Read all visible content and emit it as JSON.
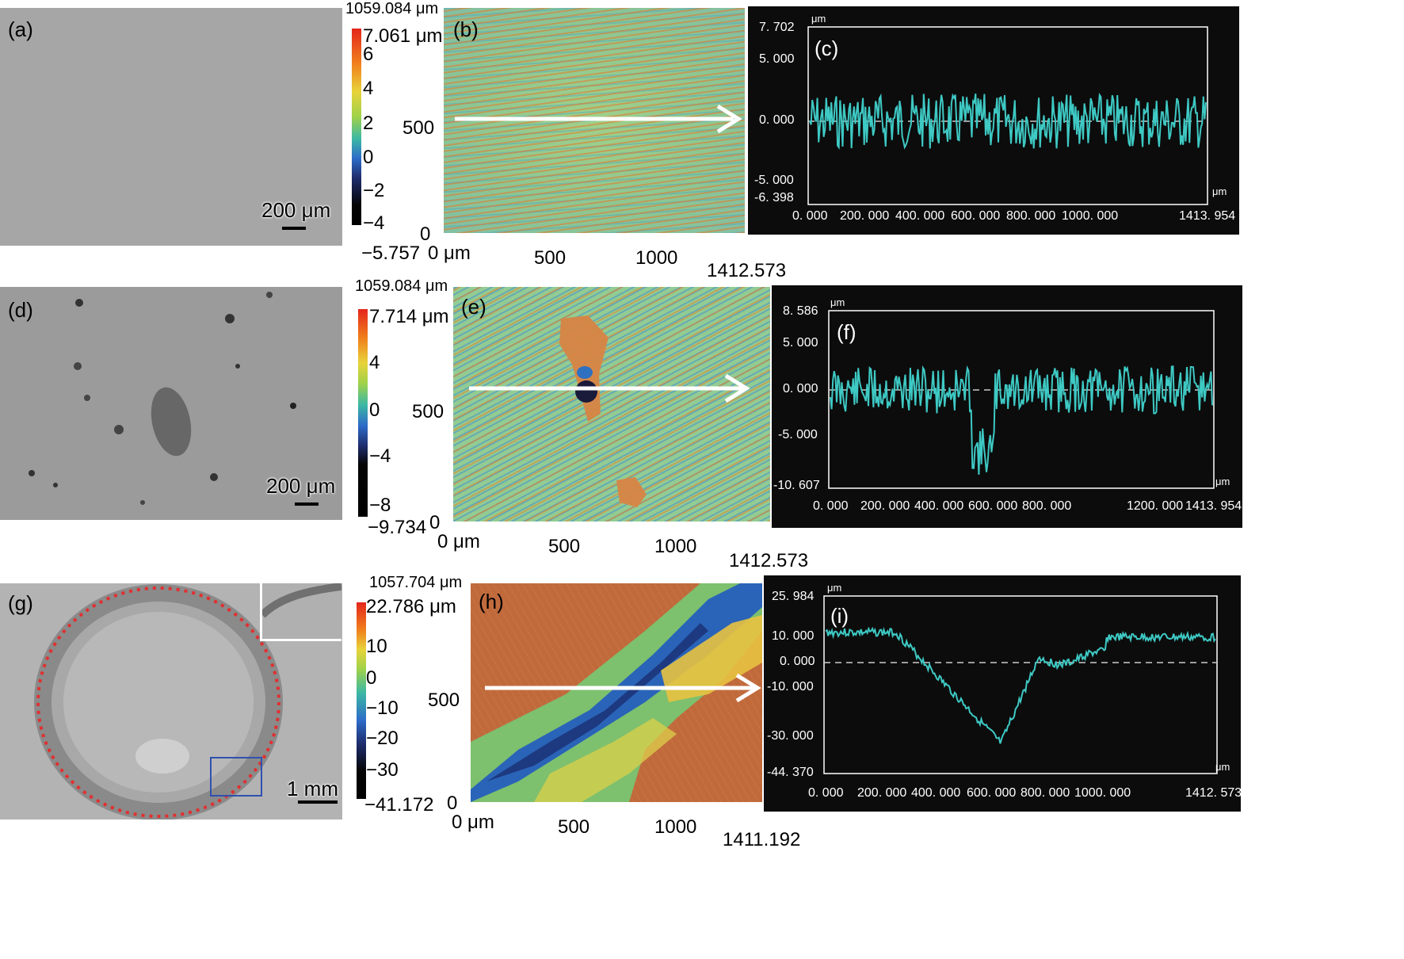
{
  "rows": [
    {
      "micro_label": "(a)",
      "scale_text": "200 μm",
      "cb_top": "7.061 μm",
      "cb_bottom": "−5.757",
      "cb_ticks": [
        "6",
        "4",
        "2",
        "0",
        "−2",
        "−4"
      ],
      "map_label": "(b)",
      "map_top": "1059.084 μm",
      "map_y500": "500",
      "map_y0": "0",
      "map_x0": "0 μm",
      "map_x500": "500",
      "map_x1000": "1000",
      "map_xmax": "1412.573",
      "profile_label": "(c)",
      "unit": "μm",
      "y_ticks": [
        "7. 702",
        "5. 000",
        "0. 000",
        "-5. 000",
        "-6. 398"
      ],
      "x_ticks": [
        "0. 000",
        "200. 000",
        "400. 000",
        "600. 000",
        "800. 000",
        "1000. 000",
        "1413. 954"
      ]
    },
    {
      "micro_label": "(d)",
      "scale_text": "200 μm",
      "cb_top": "7.714 μm",
      "cb_bottom": "−9.734",
      "cb_ticks": [
        "4",
        "0",
        "−4",
        "−8"
      ],
      "map_label": "(e)",
      "map_top": "1059.084 μm",
      "map_y500": "500",
      "map_y0": "0",
      "map_x0": "0 μm",
      "map_x500": "500",
      "map_x1000": "1000",
      "map_xmax": "1412.573",
      "profile_label": "(f)",
      "unit": "μm",
      "y_ticks": [
        "8. 586",
        "5. 000",
        "0. 000",
        "-5. 000",
        "-10. 607"
      ],
      "x_ticks": [
        "0. 000",
        "200. 000",
        "400. 000",
        "600. 000",
        "800. 000",
        "1200. 000",
        "1413. 954"
      ]
    },
    {
      "micro_label": "(g)",
      "scale_text": "1 mm",
      "cb_top": "22.786 μm",
      "cb_bottom": "−41.172",
      "cb_ticks": [
        "10",
        "0",
        "−10",
        "−20",
        "−30"
      ],
      "map_label": "(h)",
      "map_top": "1057.704 μm",
      "map_y500": "500",
      "map_y0": "0",
      "map_x0": "0 μm",
      "map_x500": "500",
      "map_x1000": "1000",
      "map_xmax": "1411.192",
      "profile_label": "(i)",
      "unit": "μm",
      "y_ticks": [
        "25. 984",
        "10. 000",
        "0. 000",
        "-10. 000",
        "-30. 000",
        "-44. 370"
      ],
      "x_ticks": [
        "0. 000",
        "200. 000",
        "400. 000",
        "600. 000",
        "800. 000",
        "1000. 000",
        "1412. 573"
      ]
    }
  ],
  "colors": {
    "profile_line": "#3ec9c4",
    "arrow": "#ffffff",
    "circle": "#e03030",
    "inset_box": "#3050b0"
  }
}
